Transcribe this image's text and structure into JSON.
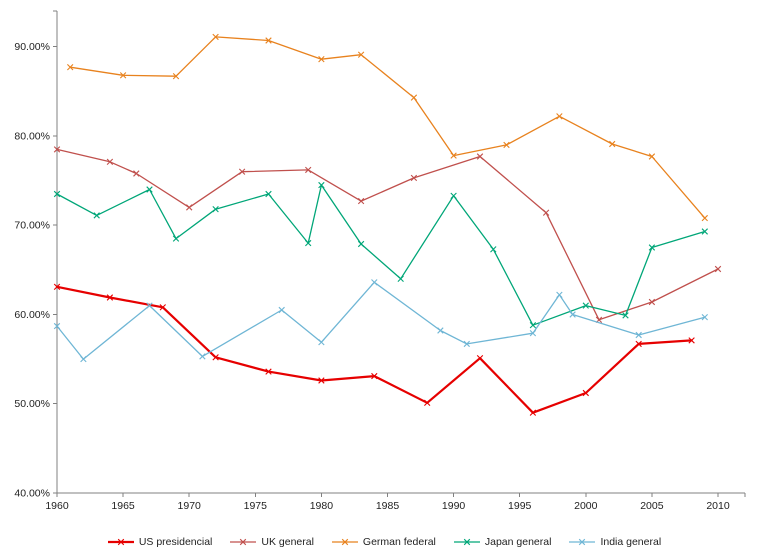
{
  "chart_data": {
    "type": "line",
    "title": "",
    "xlabel": "",
    "ylabel": "",
    "grid": false,
    "legend_position": "bottom",
    "xlim": [
      1960,
      2010
    ],
    "ylim": [
      40,
      94
    ],
    "x_ticks": [
      1960,
      1965,
      1970,
      1975,
      1980,
      1985,
      1990,
      1995,
      2000,
      2005,
      2010
    ],
    "y_ticks": [
      40,
      50,
      60,
      70,
      80,
      90
    ],
    "y_tick_labels": [
      "40.00%",
      "50.00%",
      "60.00%",
      "70.00%",
      "80.00%",
      "90.00%"
    ],
    "marker": "x",
    "axis_color": "#808080",
    "series": [
      {
        "name": "US presidencial",
        "color": "#e60000",
        "line_width": 2.2,
        "points": [
          [
            1960,
            63.1
          ],
          [
            1964,
            61.9
          ],
          [
            1968,
            60.8
          ],
          [
            1972,
            55.2
          ],
          [
            1976,
            53.6
          ],
          [
            1980,
            52.6
          ],
          [
            1984,
            53.1
          ],
          [
            1988,
            50.1
          ],
          [
            1992,
            55.1
          ],
          [
            1996,
            49.0
          ],
          [
            2000,
            51.2
          ],
          [
            2004,
            56.7
          ],
          [
            2008,
            57.1
          ]
        ]
      },
      {
        "name": "UK general",
        "color": "#c0504d",
        "line_width": 1.3,
        "points": [
          [
            1960,
            78.5
          ],
          [
            1964,
            77.1
          ],
          [
            1966,
            75.8
          ],
          [
            1970,
            72.0
          ],
          [
            1974,
            76.0
          ],
          [
            1979,
            76.2
          ],
          [
            1983,
            72.7
          ],
          [
            1987,
            75.3
          ],
          [
            1992,
            77.7
          ],
          [
            1997,
            71.4
          ],
          [
            2001,
            59.4
          ],
          [
            2005,
            61.4
          ],
          [
            2010,
            65.1
          ]
        ]
      },
      {
        "name": "German federal",
        "color": "#e8821e",
        "line_width": 1.3,
        "points": [
          [
            1961,
            87.7
          ],
          [
            1965,
            86.8
          ],
          [
            1969,
            86.7
          ],
          [
            1972,
            91.1
          ],
          [
            1976,
            90.7
          ],
          [
            1980,
            88.6
          ],
          [
            1983,
            89.1
          ],
          [
            1987,
            84.3
          ],
          [
            1990,
            77.8
          ],
          [
            1994,
            79.0
          ],
          [
            1998,
            82.2
          ],
          [
            2002,
            79.1
          ],
          [
            2005,
            77.7
          ],
          [
            2009,
            70.8
          ]
        ]
      },
      {
        "name": "Japan general",
        "color": "#00a678",
        "line_width": 1.3,
        "points": [
          [
            1960,
            73.5
          ],
          [
            1963,
            71.1
          ],
          [
            1967,
            74.0
          ],
          [
            1969,
            68.5
          ],
          [
            1972,
            71.8
          ],
          [
            1976,
            73.5
          ],
          [
            1979,
            68.0
          ],
          [
            1980,
            74.5
          ],
          [
            1983,
            67.9
          ],
          [
            1986,
            64.0
          ],
          [
            1990,
            73.3
          ],
          [
            1993,
            67.3
          ],
          [
            1996,
            58.8
          ],
          [
            2000,
            61.0
          ],
          [
            2003,
            59.9
          ],
          [
            2005,
            67.5
          ],
          [
            2009,
            69.3
          ]
        ]
      },
      {
        "name": "India general",
        "color": "#6fb6d5",
        "line_width": 1.3,
        "points": [
          [
            1960,
            58.7
          ],
          [
            1962,
            55.0
          ],
          [
            1967,
            61.0
          ],
          [
            1971,
            55.3
          ],
          [
            1977,
            60.5
          ],
          [
            1980,
            56.9
          ],
          [
            1984,
            63.6
          ],
          [
            1989,
            58.2
          ],
          [
            1991,
            56.7
          ],
          [
            1996,
            57.9
          ],
          [
            1998,
            62.2
          ],
          [
            1999,
            60.0
          ],
          [
            2004,
            57.7
          ],
          [
            2009,
            59.7
          ]
        ]
      }
    ]
  }
}
